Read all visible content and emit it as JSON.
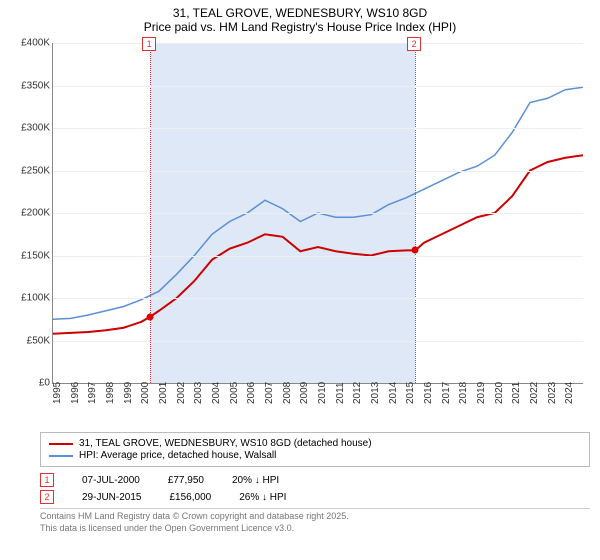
{
  "title": {
    "line1": "31, TEAL GROVE, WEDNESBURY, WS10 8GD",
    "line2": "Price paid vs. HM Land Registry's House Price Index (HPI)"
  },
  "chart": {
    "type": "line",
    "background_color": "#ffffff",
    "grid_color": "#eeeeee",
    "ylim": [
      0,
      400000
    ],
    "ytick_step": 50000,
    "ytick_labels": [
      "£0",
      "£50K",
      "£100K",
      "£150K",
      "£200K",
      "£250K",
      "£300K",
      "£350K",
      "£400K"
    ],
    "xlim": [
      1995,
      2025
    ],
    "xticks": [
      1995,
      1996,
      1997,
      1998,
      1999,
      2000,
      2001,
      2002,
      2003,
      2004,
      2005,
      2006,
      2007,
      2008,
      2009,
      2010,
      2011,
      2012,
      2013,
      2014,
      2015,
      2016,
      2017,
      2018,
      2019,
      2020,
      2021,
      2022,
      2023,
      2024
    ],
    "series": [
      {
        "name": "price_paid",
        "color": "#cc0000",
        "width": 2,
        "points": [
          [
            1995,
            58000
          ],
          [
            1996,
            59000
          ],
          [
            1997,
            60000
          ],
          [
            1998,
            62000
          ],
          [
            1999,
            65000
          ],
          [
            2000,
            72000
          ],
          [
            2000.5,
            77950
          ],
          [
            2001,
            85000
          ],
          [
            2002,
            100000
          ],
          [
            2003,
            120000
          ],
          [
            2004,
            145000
          ],
          [
            2005,
            158000
          ],
          [
            2006,
            165000
          ],
          [
            2007,
            175000
          ],
          [
            2008,
            172000
          ],
          [
            2009,
            155000
          ],
          [
            2010,
            160000
          ],
          [
            2011,
            155000
          ],
          [
            2012,
            152000
          ],
          [
            2013,
            150000
          ],
          [
            2014,
            155000
          ],
          [
            2015,
            156000
          ],
          [
            2015.5,
            156000
          ],
          [
            2016,
            165000
          ],
          [
            2017,
            175000
          ],
          [
            2018,
            185000
          ],
          [
            2019,
            195000
          ],
          [
            2020,
            200000
          ],
          [
            2021,
            220000
          ],
          [
            2022,
            250000
          ],
          [
            2023,
            260000
          ],
          [
            2024,
            265000
          ],
          [
            2025,
            268000
          ]
        ]
      },
      {
        "name": "hpi",
        "color": "#5b8fd6",
        "width": 1.5,
        "points": [
          [
            1995,
            75000
          ],
          [
            1996,
            76000
          ],
          [
            1997,
            80000
          ],
          [
            1998,
            85000
          ],
          [
            1999,
            90000
          ],
          [
            2000,
            98000
          ],
          [
            2001,
            108000
          ],
          [
            2002,
            128000
          ],
          [
            2003,
            150000
          ],
          [
            2004,
            175000
          ],
          [
            2005,
            190000
          ],
          [
            2006,
            200000
          ],
          [
            2007,
            215000
          ],
          [
            2008,
            205000
          ],
          [
            2009,
            190000
          ],
          [
            2010,
            200000
          ],
          [
            2011,
            195000
          ],
          [
            2012,
            195000
          ],
          [
            2013,
            198000
          ],
          [
            2014,
            210000
          ],
          [
            2015,
            218000
          ],
          [
            2016,
            228000
          ],
          [
            2017,
            238000
          ],
          [
            2018,
            248000
          ],
          [
            2019,
            255000
          ],
          [
            2020,
            268000
          ],
          [
            2021,
            295000
          ],
          [
            2022,
            330000
          ],
          [
            2023,
            335000
          ],
          [
            2024,
            345000
          ],
          [
            2025,
            348000
          ]
        ]
      }
    ],
    "markers": [
      {
        "num": "1",
        "x": 2000.5,
        "y": 77950
      },
      {
        "num": "2",
        "x": 2015.5,
        "y": 156000
      }
    ],
    "marker_color": "#d33333",
    "band_color": "rgba(160,190,230,0.35)"
  },
  "legend": {
    "items": [
      {
        "color": "#cc0000",
        "label": "31, TEAL GROVE, WEDNESBURY, WS10 8GD (detached house)"
      },
      {
        "color": "#5b8fd6",
        "label": "HPI: Average price, detached house, Walsall"
      }
    ]
  },
  "sales": [
    {
      "num": "1",
      "date": "07-JUL-2000",
      "price": "£77,950",
      "delta": "20% ↓ HPI"
    },
    {
      "num": "2",
      "date": "29-JUN-2015",
      "price": "£156,000",
      "delta": "26% ↓ HPI"
    }
  ],
  "credit": {
    "line1": "Contains HM Land Registry data © Crown copyright and database right 2025.",
    "line2": "This data is licensed under the Open Government Licence v3.0."
  }
}
